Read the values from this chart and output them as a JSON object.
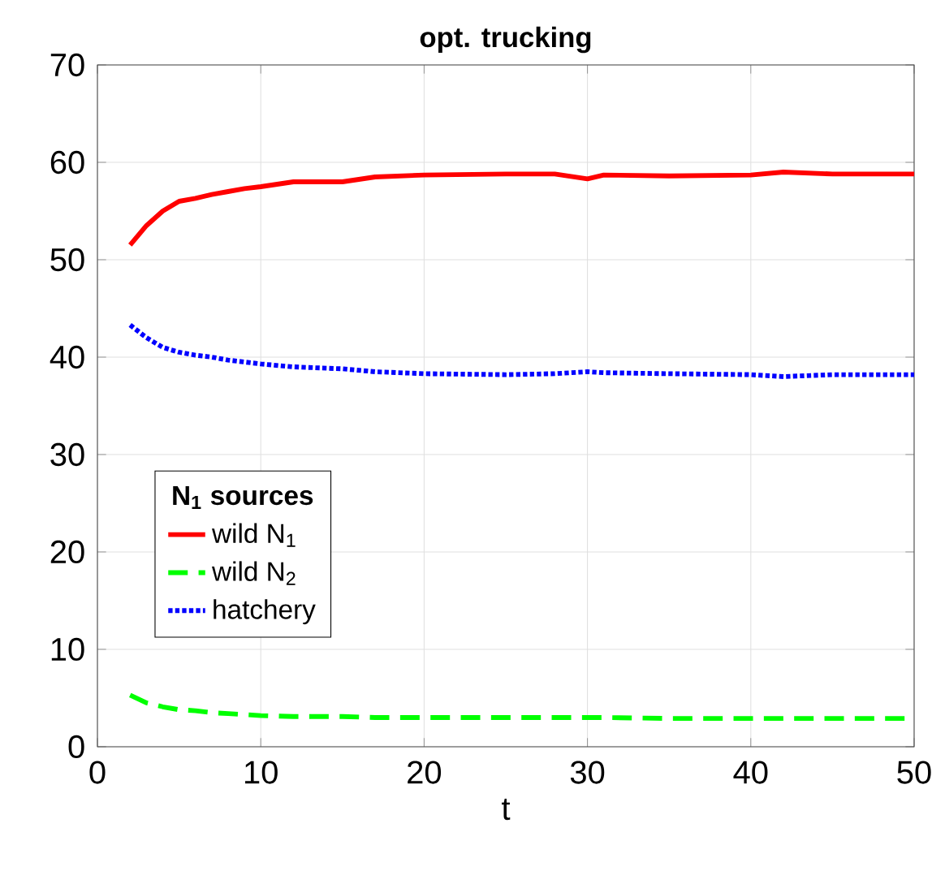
{
  "chart_data": {
    "type": "line",
    "title": "opt. trucking",
    "xlabel": "t",
    "legend_title": "N$_{1}$ sources",
    "legend": "left",
    "grid": true,
    "xlim": [
      0,
      50
    ],
    "ylim": [
      0,
      70
    ],
    "xticks": [
      0,
      10,
      20,
      30,
      40,
      50
    ],
    "yticks": [
      0,
      10,
      20,
      30,
      40,
      50,
      60,
      70
    ],
    "x": [
      2,
      3,
      4,
      5,
      6,
      7,
      8,
      9,
      10,
      12,
      15,
      17,
      20,
      25,
      28,
      30,
      31,
      35,
      40,
      42,
      45,
      50
    ],
    "series": [
      {
        "name": "wild N$_{1}$",
        "color": "#ff0000",
        "line_style": "solid",
        "values": [
          51.5,
          53.5,
          55,
          56,
          56.3,
          56.7,
          57,
          57.3,
          57.5,
          58,
          58,
          58.5,
          58.7,
          58.8,
          58.8,
          58.3,
          58.7,
          58.6,
          58.7,
          59,
          58.8,
          58.8
        ]
      },
      {
        "name": "wild N$_{2}$",
        "color": "#00ff00",
        "line_style": "dashed",
        "values": [
          5.3,
          4.5,
          4.1,
          3.8,
          3.7,
          3.5,
          3.4,
          3.3,
          3.2,
          3.1,
          3.1,
          3.0,
          3.0,
          3.0,
          3.0,
          3.0,
          3.0,
          2.9,
          2.9,
          2.9,
          2.9,
          2.9
        ]
      },
      {
        "name": "hatchery",
        "color": "#0000ff",
        "line_style": "dotted",
        "values": [
          43.3,
          42,
          41,
          40.5,
          40.2,
          40,
          39.7,
          39.5,
          39.3,
          39,
          38.8,
          38.5,
          38.3,
          38.2,
          38.3,
          38.5,
          38.4,
          38.3,
          38.2,
          38,
          38.2,
          38.2
        ]
      }
    ]
  }
}
